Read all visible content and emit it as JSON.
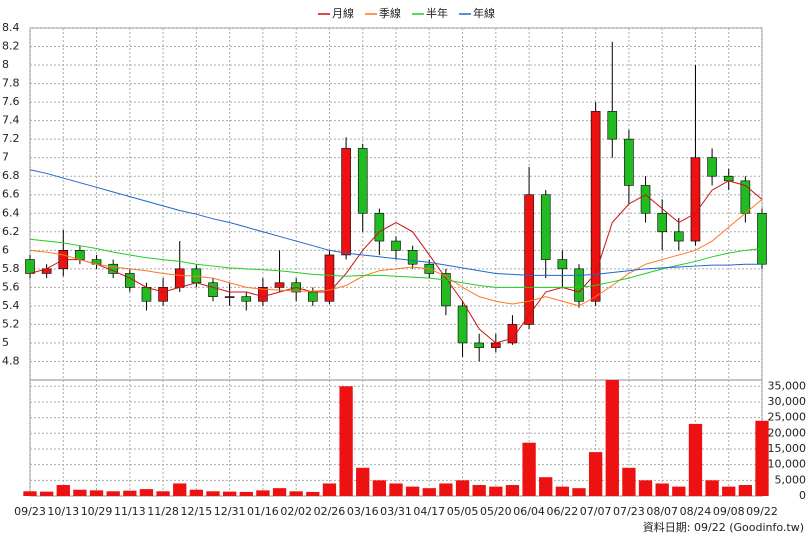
{
  "chart_data": [
    {
      "type": "candlestick",
      "categories": [
        "09/23",
        null,
        "10/13",
        null,
        "10/29",
        null,
        "11/13",
        null,
        "11/28",
        null,
        "12/15",
        null,
        "12/31",
        null,
        "01/16",
        null,
        "02/02",
        null,
        "02/26",
        null,
        "03/16",
        null,
        "03/31",
        null,
        "04/17",
        null,
        "05/05",
        null,
        "05/20",
        null,
        "06/04",
        null,
        "06/22",
        null,
        "07/07",
        null,
        "07/23",
        null,
        "08/07",
        null,
        "08/24",
        null,
        "09/08",
        null,
        "09/22"
      ],
      "open": [
        5.9,
        5.75,
        5.8,
        6.0,
        5.9,
        5.85,
        5.75,
        5.6,
        5.45,
        5.6,
        5.8,
        5.65,
        5.5,
        5.5,
        5.45,
        5.6,
        5.65,
        5.55,
        5.45,
        5.95,
        7.1,
        6.4,
        6.1,
        6.0,
        5.85,
        5.75,
        5.4,
        5.0,
        4.95,
        5.0,
        5.2,
        6.6,
        5.9,
        5.8,
        5.45,
        7.5,
        7.2,
        6.7,
        6.4,
        6.2,
        6.1,
        7.0,
        6.8,
        6.75,
        6.4
      ],
      "high": [
        5.95,
        5.85,
        6.22,
        6.05,
        5.95,
        5.9,
        5.8,
        5.65,
        5.7,
        6.1,
        5.85,
        5.7,
        5.65,
        5.55,
        5.7,
        6.0,
        5.7,
        5.6,
        6.0,
        7.22,
        7.15,
        6.45,
        6.15,
        6.05,
        5.9,
        5.8,
        5.45,
        5.1,
        5.1,
        5.3,
        6.9,
        6.65,
        6.0,
        5.85,
        7.6,
        8.25,
        7.3,
        6.8,
        6.55,
        6.35,
        8.0,
        7.1,
        6.88,
        6.8,
        6.45
      ],
      "low": [
        5.7,
        5.7,
        5.72,
        5.85,
        5.8,
        5.7,
        5.55,
        5.35,
        5.4,
        5.55,
        5.6,
        5.45,
        5.4,
        5.35,
        5.4,
        5.55,
        5.45,
        5.4,
        5.42,
        5.9,
        6.2,
        5.95,
        5.9,
        5.8,
        5.7,
        5.3,
        4.85,
        4.8,
        4.9,
        4.98,
        5.15,
        5.7,
        5.6,
        5.38,
        5.4,
        7.0,
        6.5,
        6.3,
        6.0,
        6.0,
        6.05,
        6.7,
        6.65,
        6.3,
        5.8
      ],
      "close": [
        5.75,
        5.8,
        6.0,
        5.9,
        5.85,
        5.75,
        5.6,
        5.45,
        5.6,
        5.8,
        5.65,
        5.5,
        5.5,
        5.45,
        5.6,
        5.65,
        5.55,
        5.45,
        5.95,
        7.1,
        6.4,
        6.1,
        6.0,
        5.85,
        5.75,
        5.4,
        5.0,
        4.95,
        5.0,
        5.2,
        6.6,
        5.9,
        5.8,
        5.45,
        7.5,
        7.2,
        6.7,
        6.4,
        6.2,
        6.1,
        7.0,
        6.8,
        6.75,
        6.4,
        5.85
      ],
      "up_color": "#ee1111",
      "down_color": "#22bb22",
      "series": [
        {
          "name": "月線",
          "color": "#cc1111",
          "values": [
            5.75,
            5.8,
            5.9,
            5.9,
            5.85,
            5.78,
            5.7,
            5.6,
            5.55,
            5.6,
            5.65,
            5.6,
            5.55,
            5.55,
            5.5,
            5.55,
            5.6,
            5.55,
            5.55,
            5.75,
            6.0,
            6.2,
            6.3,
            6.2,
            5.95,
            5.7,
            5.45,
            5.15,
            5.0,
            5.05,
            5.3,
            5.55,
            5.6,
            5.55,
            5.75,
            6.3,
            6.5,
            6.6,
            6.45,
            6.3,
            6.4,
            6.65,
            6.75,
            6.7,
            6.55
          ]
        },
        {
          "name": "季線",
          "color": "#ff7722",
          "values": [
            6.0,
            5.98,
            5.95,
            5.9,
            5.85,
            5.82,
            5.8,
            5.78,
            5.75,
            5.73,
            5.72,
            5.7,
            5.65,
            5.6,
            5.58,
            5.57,
            5.56,
            5.56,
            5.57,
            5.62,
            5.72,
            5.78,
            5.8,
            5.82,
            5.8,
            5.72,
            5.6,
            5.5,
            5.45,
            5.42,
            5.45,
            5.5,
            5.45,
            5.4,
            5.5,
            5.62,
            5.75,
            5.85,
            5.9,
            5.95,
            6.0,
            6.1,
            6.25,
            6.4,
            6.55
          ]
        },
        {
          "name": "半年",
          "color": "#22cc22",
          "values": [
            6.12,
            6.1,
            6.08,
            6.05,
            6.02,
            5.98,
            5.95,
            5.92,
            5.9,
            5.88,
            5.85,
            5.83,
            5.81,
            5.8,
            5.79,
            5.78,
            5.76,
            5.74,
            5.73,
            5.72,
            5.73,
            5.73,
            5.72,
            5.71,
            5.7,
            5.68,
            5.65,
            5.62,
            5.6,
            5.6,
            5.6,
            5.6,
            5.6,
            5.6,
            5.62,
            5.66,
            5.7,
            5.75,
            5.8,
            5.84,
            5.88,
            5.93,
            5.97,
            6.0,
            6.02
          ]
        },
        {
          "name": "年線",
          "color": "#2266cc",
          "values": [
            6.87,
            6.83,
            6.78,
            6.73,
            6.68,
            6.63,
            6.58,
            6.53,
            6.48,
            6.43,
            6.39,
            6.34,
            6.3,
            6.25,
            6.2,
            6.15,
            6.1,
            6.05,
            6.0,
            5.97,
            5.95,
            5.93,
            5.91,
            5.89,
            5.87,
            5.84,
            5.81,
            5.78,
            5.75,
            5.74,
            5.73,
            5.73,
            5.73,
            5.73,
            5.74,
            5.76,
            5.78,
            5.8,
            5.81,
            5.82,
            5.83,
            5.84,
            5.84,
            5.85,
            5.85
          ]
        }
      ],
      "ylim": [
        4.6,
        8.4
      ],
      "yticks": [
        4.8,
        5,
        5.2,
        5.4,
        5.6,
        5.8,
        6,
        6.2,
        6.4,
        6.6,
        6.8,
        7,
        7.2,
        7.4,
        7.6,
        7.8,
        8,
        8.2,
        8.4
      ],
      "grid": true
    },
    {
      "type": "bar",
      "color": "#ee1111",
      "values": [
        1500,
        1400,
        3500,
        2000,
        1800,
        1500,
        1700,
        2200,
        1500,
        4000,
        2000,
        1500,
        1400,
        1300,
        1800,
        2500,
        1500,
        1300,
        4000,
        35000,
        9000,
        5000,
        4000,
        3000,
        2500,
        4000,
        5000,
        3500,
        3000,
        3500,
        17000,
        6000,
        3000,
        2500,
        14000,
        37000,
        9000,
        5000,
        4000,
        3000,
        23000,
        5000,
        3000,
        3500,
        24000
      ],
      "ylim": [
        0,
        37000
      ],
      "yticks": [
        0,
        {
          "value": 5000,
          "label": "5,000"
        },
        {
          "value": 10000,
          "label": "10,000"
        },
        {
          "value": 15000,
          "label": "15,000"
        },
        {
          "value": 20000,
          "label": "20,000"
        },
        {
          "value": 25000,
          "label": "25,000"
        },
        {
          "value": 30000,
          "label": "30,000"
        },
        {
          "value": 35000,
          "label": "35,000"
        }
      ],
      "grid": true,
      "source_note": "資料日期: 09/22 (Goodinfo.tw)"
    }
  ]
}
